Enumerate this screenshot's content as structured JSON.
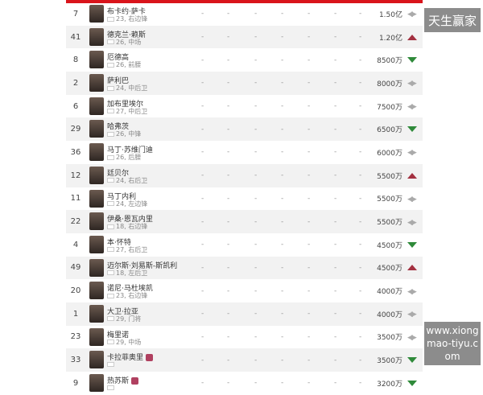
{
  "colors": {
    "header": "#d9141b",
    "up": "#a33040",
    "down": "#2f8a3a"
  },
  "placeholder": "-",
  "players": [
    {
      "num": "7",
      "name": "布卡约·萨卡",
      "info": "23, 右边锋",
      "value": "1.50亿",
      "trend": "same"
    },
    {
      "num": "41",
      "name": "德克兰·赖斯",
      "info": "26, 中场",
      "value": "1.20亿",
      "trend": "up"
    },
    {
      "num": "8",
      "name": "厄德高",
      "info": "26, 前腰",
      "value": "8500万",
      "trend": "down"
    },
    {
      "num": "2",
      "name": "萨利巴",
      "info": "24, 中后卫",
      "value": "8000万",
      "trend": "same"
    },
    {
      "num": "6",
      "name": "加布里埃尔",
      "info": "27, 中后卫",
      "value": "7500万",
      "trend": "same"
    },
    {
      "num": "29",
      "name": "哈弗茨",
      "info": "26, 中锋",
      "value": "6500万",
      "trend": "down"
    },
    {
      "num": "36",
      "name": "马丁·苏维门迪",
      "info": "26, 后腰",
      "value": "6000万",
      "trend": "same"
    },
    {
      "num": "12",
      "name": "廷贝尔",
      "info": "24, 右后卫",
      "value": "5500万",
      "trend": "up"
    },
    {
      "num": "11",
      "name": "马丁内利",
      "info": "24, 左边锋",
      "value": "5500万",
      "trend": "same"
    },
    {
      "num": "22",
      "name": "伊桑·恩瓦内里",
      "info": "18, 右边锋",
      "value": "5500万",
      "trend": "same"
    },
    {
      "num": "4",
      "name": "本·怀特",
      "info": "27, 右后卫",
      "value": "4500万",
      "trend": "down"
    },
    {
      "num": "49",
      "name": "迈尔斯·刘易斯-斯凯利",
      "info": "18, 左后卫",
      "value": "4500万",
      "trend": "up"
    },
    {
      "num": "20",
      "name": "诺尼·马杜埃凯",
      "info": "23, 右边锋",
      "value": "4000万",
      "trend": "same"
    },
    {
      "num": "1",
      "name": "大卫·拉亚",
      "info": "29, 门将",
      "value": "4000万",
      "trend": "same"
    },
    {
      "num": "23",
      "name": "梅里诺",
      "info": "29, 中场",
      "value": "3500万",
      "trend": "same"
    },
    {
      "num": "33",
      "name": "卡拉菲奥里",
      "info": "",
      "value": "3500万",
      "trend": "down"
    },
    {
      "num": "9",
      "name": "热苏斯",
      "info": "",
      "value": "3200万",
      "trend": "down"
    }
  ],
  "watermarks": {
    "top": "天生赢家",
    "bottom": "www.xiongmao-tiyu.com"
  }
}
